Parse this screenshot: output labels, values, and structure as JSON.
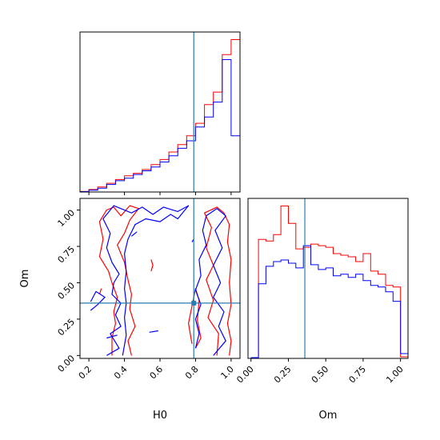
{
  "chart_data": {
    "type": "corner",
    "colors": {
      "series_a": "#ff0000",
      "series_b": "#0000ff",
      "truth": "#2b7bb3"
    },
    "truth": {
      "H0": 0.79,
      "Om": 0.36
    },
    "panels": [
      {
        "id": "h0-hist",
        "type": "histogram",
        "xlim": [
          0.15,
          1.05
        ],
        "bin_edges": [
          0.15,
          0.2,
          0.25,
          0.3,
          0.35,
          0.4,
          0.45,
          0.5,
          0.55,
          0.6,
          0.65,
          0.7,
          0.75,
          0.8,
          0.85,
          0.9,
          0.95,
          1.0,
          1.05
        ],
        "series": [
          {
            "values": [
              0.5,
              2,
              4,
              7,
              10,
              13,
              15,
              18,
              22,
              26,
              32,
              38,
              45,
              55,
              70,
              80,
              110,
              122
            ]
          },
          {
            "values": [
              0.3,
              1.5,
              3,
              6,
              9,
              11,
              14,
              17,
              20,
              24,
              29,
              35,
              41,
              52,
              60,
              72,
              106,
              45
            ]
          }
        ]
      },
      {
        "id": "h0-om-contour",
        "type": "contour",
        "xlabel": "H0",
        "ylabel": "Om",
        "xlim": [
          0.15,
          1.05
        ],
        "ylim": [
          -0.02,
          1.08
        ],
        "xticks": [
          "0.2",
          "0.4",
          "0.6",
          "0.8",
          "1.0"
        ],
        "xtick_values": [
          0.2,
          0.4,
          0.6,
          0.8,
          1.0
        ],
        "yticks": [
          "0.00",
          "0.25",
          "0.50",
          "0.75",
          "1.00"
        ],
        "ytick_values": [
          0.0,
          0.25,
          0.5,
          0.75,
          1.0
        ],
        "series": [
          {
            "contours": [
              [
                [
                  0.33,
                  0.0
                ],
                [
                  0.33,
                  0.12
                ],
                [
                  0.35,
                  0.22
                ],
                [
                  0.34,
                  0.3
                ],
                [
                  0.36,
                  0.4
                ],
                [
                  0.33,
                  0.5
                ],
                [
                  0.31,
                  0.58
                ],
                [
                  0.26,
                  0.68
                ],
                [
                  0.28,
                  0.8
                ],
                [
                  0.26,
                  0.92
                ],
                [
                  0.3,
                  1.0
                ],
                [
                  0.34,
                  1.02
                ],
                [
                  0.38,
                  0.96
                ],
                [
                  0.43,
                  1.03
                ],
                [
                  0.48,
                  1.01
                ],
                [
                  0.43,
                  0.93
                ],
                [
                  0.4,
                  0.84
                ],
                [
                  0.36,
                  0.76
                ],
                [
                  0.4,
                  0.64
                ],
                [
                  0.42,
                  0.52
                ],
                [
                  0.44,
                  0.42
                ],
                [
                  0.43,
                  0.32
                ],
                [
                  0.46,
                  0.2
                ],
                [
                  0.42,
                  0.1
                ],
                [
                  0.44,
                  0.0
                ]
              ],
              [
                [
                  0.92,
                  0.0
                ],
                [
                  0.93,
                  0.15
                ],
                [
                  0.87,
                  0.26
                ],
                [
                  0.9,
                  0.38
                ],
                [
                  0.86,
                  0.52
                ],
                [
                  0.9,
                  0.62
                ],
                [
                  0.86,
                  0.74
                ],
                [
                  0.89,
                  0.88
                ],
                [
                  0.85,
                  0.98
                ],
                [
                  0.92,
                  1.02
                ],
                [
                  0.96,
                  0.98
                ],
                [
                  0.99,
                  0.9
                ],
                [
                  0.98,
                  0.78
                ],
                [
                  1.0,
                  0.66
                ],
                [
                  0.99,
                  0.5
                ],
                [
                  1.0,
                  0.35
                ],
                [
                  0.98,
                  0.22
                ],
                [
                  1.0,
                  0.1
                ],
                [
                  0.99,
                  0.0
                ]
              ],
              [
                [
                  0.78,
                  0.08
                ],
                [
                  0.76,
                  0.22
                ],
                [
                  0.78,
                  0.34
                ],
                [
                  0.8,
                  0.46
                ],
                [
                  0.82,
                  0.38
                ],
                [
                  0.81,
                  0.24
                ],
                [
                  0.83,
                  0.12
                ],
                [
                  0.8,
                  0.05
                ]
              ],
              [
                [
                  0.55,
                  0.58
                ],
                [
                  0.56,
                  0.62
                ],
                [
                  0.55,
                  0.66
                ]
              ],
              [
                [
                  0.26,
                  0.42
                ],
                [
                  0.27,
                  0.46
                ]
              ]
            ]
          },
          {
            "contours": [
              [
                [
                  0.3,
                  0.0
                ],
                [
                  0.37,
                  0.05
                ],
                [
                  0.32,
                  0.15
                ],
                [
                  0.38,
                  0.2
                ],
                [
                  0.35,
                  0.28
                ],
                [
                  0.38,
                  0.36
                ],
                [
                  0.33,
                  0.42
                ],
                [
                  0.34,
                  0.5
                ],
                [
                  0.37,
                  0.56
                ],
                [
                  0.33,
                  0.64
                ],
                [
                  0.3,
                  0.74
                ],
                [
                  0.32,
                  0.84
                ],
                [
                  0.28,
                  0.94
                ],
                [
                  0.34,
                  1.03
                ],
                [
                  0.44,
                  0.98
                ],
                [
                  0.5,
                  1.02
                ],
                [
                  0.56,
                  0.97
                ],
                [
                  0.62,
                  1.02
                ],
                [
                  0.7,
                  0.99
                ],
                [
                  0.76,
                  1.03
                ],
                [
                  0.7,
                  0.94
                ],
                [
                  0.66,
                  0.97
                ],
                [
                  0.6,
                  0.92
                ],
                [
                  0.52,
                  0.94
                ],
                [
                  0.46,
                  0.9
                ],
                [
                  0.42,
                  0.8
                ],
                [
                  0.4,
                  0.7
                ],
                [
                  0.41,
                  0.58
                ],
                [
                  0.4,
                  0.46
                ],
                [
                  0.41,
                  0.36
                ],
                [
                  0.4,
                  0.26
                ],
                [
                  0.41,
                  0.14
                ],
                [
                  0.39,
                  0.0
                ]
              ],
              [
                [
                  0.9,
                  0.0
                ],
                [
                  0.97,
                  0.1
                ],
                [
                  0.93,
                  0.2
                ],
                [
                  0.96,
                  0.3
                ],
                [
                  0.9,
                  0.4
                ],
                [
                  0.94,
                  0.5
                ],
                [
                  0.9,
                  0.62
                ],
                [
                  0.95,
                  0.74
                ],
                [
                  0.91,
                  0.86
                ],
                [
                  0.97,
                  0.96
                ],
                [
                  0.92,
                  1.01
                ],
                [
                  0.86,
                  0.96
                ],
                [
                  0.84,
                  0.86
                ],
                [
                  0.86,
                  0.76
                ],
                [
                  0.82,
                  0.66
                ],
                [
                  0.83,
                  0.55
                ],
                [
                  0.8,
                  0.45
                ],
                [
                  0.83,
                  0.35
                ],
                [
                  0.8,
                  0.25
                ],
                [
                  0.82,
                  0.15
                ],
                [
                  0.8,
                  0.05
                ]
              ],
              [
                [
                  0.21,
                  0.31
                ],
                [
                  0.25,
                  0.35
                ],
                [
                  0.29,
                  0.4
                ],
                [
                  0.24,
                  0.44
                ],
                [
                  0.21,
                  0.37
                ]
              ],
              [
                [
                  0.3,
                  0.12
                ],
                [
                  0.36,
                  0.14
                ]
              ],
              [
                [
                  0.54,
                  0.16
                ],
                [
                  0.59,
                  0.17
                ]
              ],
              [
                [
                  0.44,
                  0.82
                ],
                [
                  0.47,
                  0.85
                ]
              ],
              [
                [
                  0.78,
                  0.78
                ],
                [
                  0.79,
                  0.8
                ]
              ]
            ]
          }
        ]
      },
      {
        "id": "om-hist",
        "type": "histogram",
        "xlabel": "Om",
        "xlim": [
          -0.02,
          1.05
        ],
        "xticks": [
          "0.00",
          "0.25",
          "0.50",
          "0.75",
          "1.00"
        ],
        "xtick_values": [
          0.0,
          0.25,
          0.5,
          0.75,
          1.0
        ],
        "bin_edges": [
          0.0,
          0.05,
          0.1,
          0.15,
          0.2,
          0.25,
          0.3,
          0.35,
          0.4,
          0.45,
          0.5,
          0.55,
          0.6,
          0.65,
          0.7,
          0.75,
          0.8,
          0.85,
          0.9,
          0.95,
          1.0,
          1.05
        ],
        "series": [
          {
            "values": [
              0.5,
              75,
              74,
              78,
              96,
              85,
              69,
              70,
              72,
              71,
              70,
              66,
              65,
              64,
              61,
              66,
              55,
              53,
              46,
              45,
              1
            ]
          },
          {
            "values": [
              0.5,
              47,
              58,
              61,
              62,
              60,
              57,
              71,
              59,
              56,
              57,
              52,
              53,
              51,
              53,
              49,
              46,
              45,
              42,
              36,
              3
            ]
          }
        ]
      }
    ]
  }
}
